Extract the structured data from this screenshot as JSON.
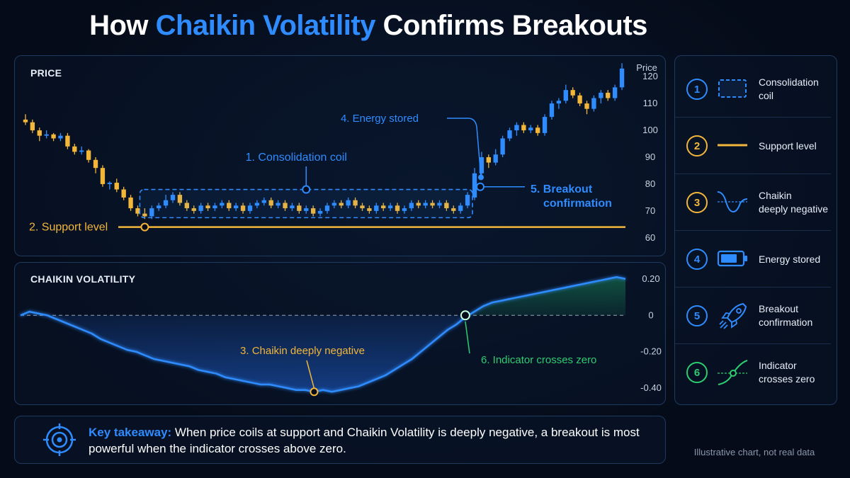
{
  "title": {
    "accent": "Chaikin Volatility",
    "prefix": "How ",
    "suffix": " Confirms Breakouts"
  },
  "colors": {
    "background": "#050b18",
    "blue": "#2f8cff",
    "gold": "#f2b63a",
    "green": "#2ecc71",
    "panel_border": "#1f3a5f"
  },
  "chart_data": [
    {
      "type": "candlestick",
      "panel_label": "PRICE",
      "ylabel": "Price",
      "yticks": [
        120,
        110,
        100,
        90,
        80,
        70,
        60
      ],
      "ylim": [
        56,
        124
      ],
      "grid": false,
      "up_color": "#2f8cff",
      "down_color": "#f2b63a",
      "candles": [
        {
          "o": 104,
          "c": 103,
          "h": 106,
          "l": 102
        },
        {
          "o": 103,
          "c": 100,
          "h": 104,
          "l": 99
        },
        {
          "o": 100,
          "c": 98,
          "h": 101,
          "l": 96
        },
        {
          "o": 98,
          "c": 98.5,
          "h": 100,
          "l": 97
        },
        {
          "o": 98.5,
          "c": 97,
          "h": 99,
          "l": 96
        },
        {
          "o": 97,
          "c": 98,
          "h": 99,
          "l": 96
        },
        {
          "o": 98,
          "c": 94,
          "h": 99,
          "l": 93
        },
        {
          "o": 94,
          "c": 92,
          "h": 95,
          "l": 91
        },
        {
          "o": 92,
          "c": 92.5,
          "h": 94,
          "l": 91
        },
        {
          "o": 92.5,
          "c": 89,
          "h": 93,
          "l": 88
        },
        {
          "o": 89,
          "c": 86,
          "h": 90,
          "l": 84
        },
        {
          "o": 86,
          "c": 80,
          "h": 87,
          "l": 79
        },
        {
          "o": 80,
          "c": 80.5,
          "h": 81,
          "l": 78
        },
        {
          "o": 80.5,
          "c": 78,
          "h": 82,
          "l": 77
        },
        {
          "o": 78,
          "c": 75,
          "h": 79,
          "l": 74
        },
        {
          "o": 75,
          "c": 71,
          "h": 76,
          "l": 70
        },
        {
          "o": 71,
          "c": 69,
          "h": 72,
          "l": 68
        },
        {
          "o": 69,
          "c": 68,
          "h": 71,
          "l": 67
        },
        {
          "o": 68,
          "c": 71,
          "h": 72,
          "l": 67
        },
        {
          "o": 71,
          "c": 72,
          "h": 73,
          "l": 70
        },
        {
          "o": 72,
          "c": 74,
          "h": 76,
          "l": 71
        },
        {
          "o": 74,
          "c": 76,
          "h": 77,
          "l": 73
        },
        {
          "o": 76,
          "c": 73,
          "h": 77,
          "l": 72
        },
        {
          "o": 73,
          "c": 71,
          "h": 74,
          "l": 70
        },
        {
          "o": 71,
          "c": 70,
          "h": 72,
          "l": 69
        },
        {
          "o": 70,
          "c": 72,
          "h": 73,
          "l": 69
        },
        {
          "o": 72,
          "c": 71,
          "h": 73,
          "l": 70
        },
        {
          "o": 71,
          "c": 72,
          "h": 73,
          "l": 70
        },
        {
          "o": 72,
          "c": 73,
          "h": 74,
          "l": 71
        },
        {
          "o": 73,
          "c": 71,
          "h": 74,
          "l": 70
        },
        {
          "o": 71,
          "c": 72,
          "h": 73,
          "l": 70
        },
        {
          "o": 72,
          "c": 70,
          "h": 73,
          "l": 69
        },
        {
          "o": 70,
          "c": 72,
          "h": 73,
          "l": 69
        },
        {
          "o": 72,
          "c": 73,
          "h": 74,
          "l": 71
        },
        {
          "o": 73,
          "c": 74,
          "h": 75,
          "l": 72
        },
        {
          "o": 74,
          "c": 72,
          "h": 75,
          "l": 71
        },
        {
          "o": 72,
          "c": 73,
          "h": 74,
          "l": 71
        },
        {
          "o": 73,
          "c": 71,
          "h": 74,
          "l": 70
        },
        {
          "o": 71,
          "c": 72,
          "h": 73,
          "l": 70
        },
        {
          "o": 72,
          "c": 70,
          "h": 73,
          "l": 69
        },
        {
          "o": 70,
          "c": 71,
          "h": 72,
          "l": 69
        },
        {
          "o": 71,
          "c": 69,
          "h": 72,
          "l": 68
        },
        {
          "o": 69,
          "c": 70,
          "h": 71,
          "l": 68
        },
        {
          "o": 70,
          "c": 72,
          "h": 73,
          "l": 69
        },
        {
          "o": 72,
          "c": 73,
          "h": 74,
          "l": 71
        },
        {
          "o": 73,
          "c": 72,
          "h": 74,
          "l": 71
        },
        {
          "o": 72,
          "c": 74,
          "h": 75,
          "l": 71
        },
        {
          "o": 74,
          "c": 72,
          "h": 75,
          "l": 71
        },
        {
          "o": 72,
          "c": 71,
          "h": 73,
          "l": 70
        },
        {
          "o": 71,
          "c": 70,
          "h": 72,
          "l": 69
        },
        {
          "o": 70,
          "c": 72,
          "h": 73,
          "l": 69
        },
        {
          "o": 72,
          "c": 71,
          "h": 73,
          "l": 70
        },
        {
          "o": 71,
          "c": 72,
          "h": 73,
          "l": 70
        },
        {
          "o": 72,
          "c": 70,
          "h": 73,
          "l": 69
        },
        {
          "o": 70,
          "c": 71,
          "h": 72,
          "l": 69
        },
        {
          "o": 71,
          "c": 73,
          "h": 74,
          "l": 70
        },
        {
          "o": 73,
          "c": 72,
          "h": 74,
          "l": 71
        },
        {
          "o": 72,
          "c": 73,
          "h": 74,
          "l": 71
        },
        {
          "o": 73,
          "c": 72,
          "h": 74,
          "l": 71
        },
        {
          "o": 72,
          "c": 73,
          "h": 74,
          "l": 71
        },
        {
          "o": 73,
          "c": 71,
          "h": 74,
          "l": 70
        },
        {
          "o": 71,
          "c": 70,
          "h": 72,
          "l": 69
        },
        {
          "o": 70,
          "c": 72,
          "h": 73,
          "l": 69
        },
        {
          "o": 72,
          "c": 76,
          "h": 77,
          "l": 71
        },
        {
          "o": 75,
          "c": 84,
          "h": 86,
          "l": 74
        },
        {
          "o": 84,
          "c": 90,
          "h": 92,
          "l": 83
        },
        {
          "o": 90,
          "c": 88,
          "h": 91,
          "l": 86
        },
        {
          "o": 88,
          "c": 91,
          "h": 93,
          "l": 87
        },
        {
          "o": 91,
          "c": 97,
          "h": 98,
          "l": 90
        },
        {
          "o": 97,
          "c": 100,
          "h": 101,
          "l": 96
        },
        {
          "o": 100,
          "c": 102,
          "h": 103,
          "l": 98
        },
        {
          "o": 102,
          "c": 100,
          "h": 103,
          "l": 99
        },
        {
          "o": 100,
          "c": 101,
          "h": 102,
          "l": 99
        },
        {
          "o": 101,
          "c": 99,
          "h": 102,
          "l": 98
        },
        {
          "o": 99,
          "c": 105,
          "h": 106,
          "l": 98
        },
        {
          "o": 105,
          "c": 110,
          "h": 111,
          "l": 104
        },
        {
          "o": 110,
          "c": 111,
          "h": 112,
          "l": 108
        },
        {
          "o": 111,
          "c": 115,
          "h": 117,
          "l": 110
        },
        {
          "o": 115,
          "c": 113,
          "h": 116,
          "l": 112
        },
        {
          "o": 113,
          "c": 110,
          "h": 114,
          "l": 109
        },
        {
          "o": 110,
          "c": 108,
          "h": 111,
          "l": 106
        },
        {
          "o": 108,
          "c": 112,
          "h": 113,
          "l": 107
        },
        {
          "o": 112,
          "c": 114,
          "h": 115,
          "l": 110
        },
        {
          "o": 114,
          "c": 112,
          "h": 115,
          "l": 111
        },
        {
          "o": 112,
          "c": 116,
          "h": 117,
          "l": 111
        },
        {
          "o": 116,
          "c": 123,
          "h": 125,
          "l": 115
        }
      ],
      "annotations": {
        "coil": "1. Consolidation coil",
        "support": "2. Support level",
        "energy": "4. Energy stored",
        "breakout_line1": "5. Breakout",
        "breakout_line2": "confirmation"
      },
      "support_level": 64,
      "coil_range": {
        "from_index": 17,
        "to_index": 63,
        "low": 67.5,
        "high": 78
      }
    },
    {
      "type": "area",
      "panel_label": "CHAIKIN VOLATILITY",
      "yticks": [
        "0.20",
        "0",
        "-0.20",
        "-0.40"
      ],
      "ytick_values": [
        0.2,
        0,
        -0.2,
        -0.4
      ],
      "ylim": [
        -0.45,
        0.25
      ],
      "grid": false,
      "zero_line": true,
      "line_color": "#2f8cff",
      "values": [
        0,
        0.02,
        0.01,
        0,
        -0.02,
        -0.04,
        -0.06,
        -0.08,
        -0.1,
        -0.13,
        -0.15,
        -0.17,
        -0.19,
        -0.2,
        -0.22,
        -0.24,
        -0.25,
        -0.26,
        -0.27,
        -0.28,
        -0.3,
        -0.31,
        -0.32,
        -0.34,
        -0.35,
        -0.36,
        -0.37,
        -0.38,
        -0.38,
        -0.39,
        -0.4,
        -0.41,
        -0.41,
        -0.42,
        -0.41,
        -0.42,
        -0.41,
        -0.4,
        -0.39,
        -0.37,
        -0.35,
        -0.33,
        -0.3,
        -0.27,
        -0.24,
        -0.2,
        -0.16,
        -0.12,
        -0.08,
        -0.05,
        -0.01,
        0.02,
        0.05,
        0.07,
        0.08,
        0.09,
        0.1,
        0.11,
        0.12,
        0.13,
        0.14,
        0.15,
        0.16,
        0.17,
        0.18,
        0.19,
        0.2,
        0.21,
        0.2
      ],
      "annotations": {
        "deep_negative": "3. Chaikin deeply negative",
        "cross_zero": "6. Indicator crosses zero"
      },
      "deep_point_index": 33,
      "cross_point_index": 50
    }
  ],
  "legend": [
    {
      "num": "1",
      "line1": "Consolidation",
      "line2": "coil",
      "color": "#2f8cff",
      "icon": "dashed-box-icon"
    },
    {
      "num": "2",
      "line1": "Support level",
      "line2": "",
      "color": "#f2b63a",
      "icon": "support-line-icon"
    },
    {
      "num": "3",
      "line1": "Chaikin",
      "line2": "deeply negative",
      "color": "#f2b63a",
      "icon": "dip-curve-icon"
    },
    {
      "num": "4",
      "line1": "Energy stored",
      "line2": "",
      "color": "#2f8cff",
      "icon": "battery-icon"
    },
    {
      "num": "5",
      "line1": "Breakout",
      "line2": "confirmation",
      "color": "#2f8cff",
      "icon": "rocket-icon"
    },
    {
      "num": "6",
      "line1": "Indicator",
      "line2": "crosses zero",
      "color": "#2ecc71",
      "icon": "zero-cross-icon"
    }
  ],
  "takeaway": {
    "lead": "Key takeaway:",
    "text": " When price coils at support and Chaikin Volatility is deeply negative, a breakout is most powerful when the indicator crosses above zero.",
    "icon": "target-icon"
  },
  "footnote": "Illustrative chart, not real data"
}
